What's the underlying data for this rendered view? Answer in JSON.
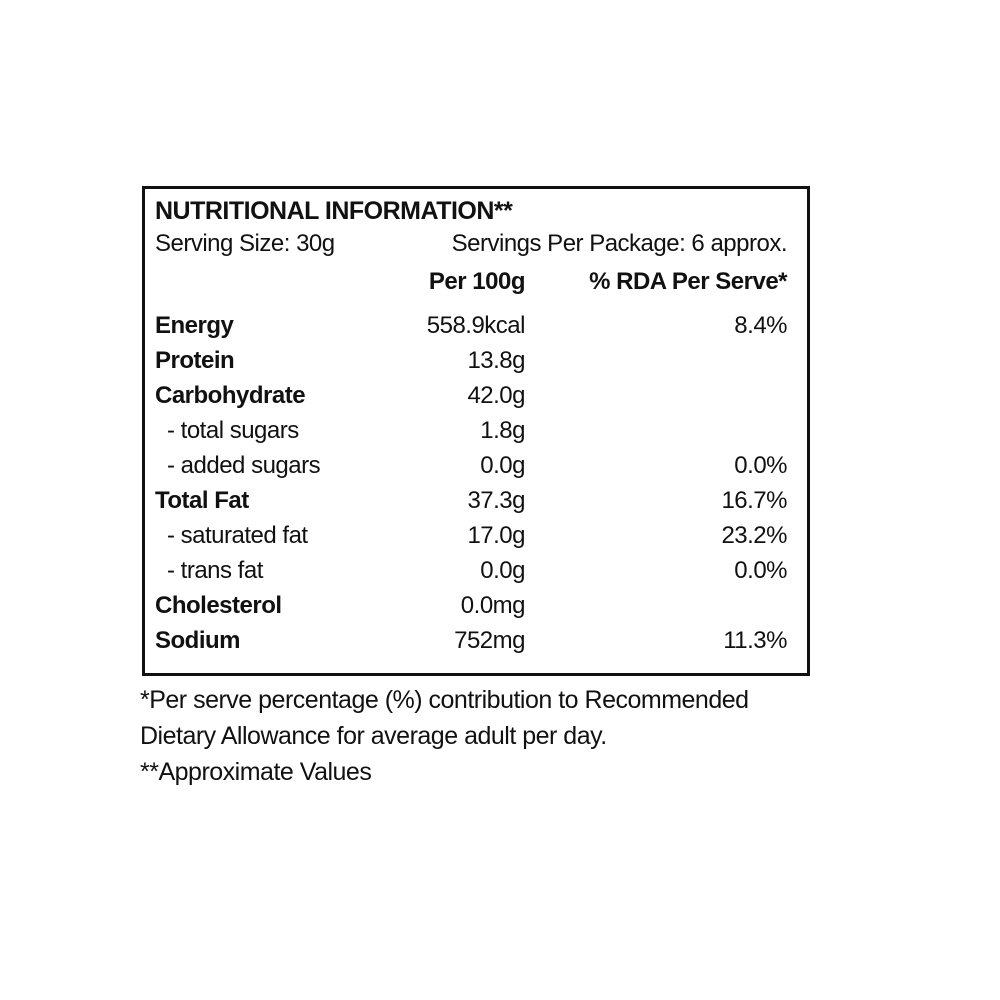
{
  "label": {
    "title": "NUTRITIONAL INFORMATION**",
    "serving_size": "Serving Size: 30g",
    "servings_per_package": "Servings Per Package: 6 approx.",
    "columns": {
      "per_100g": "Per 100g",
      "rda": "% RDA Per Serve*"
    },
    "rows": [
      {
        "name": "Energy",
        "value": "558.9kcal",
        "rda": "8.4%",
        "bold": true
      },
      {
        "name": "Protein",
        "value": "13.8g",
        "rda": "",
        "bold": true
      },
      {
        "name": "Carbohydrate",
        "value": "42.0g",
        "rda": "",
        "bold": true
      },
      {
        "name": "- total sugars",
        "value": "1.8g",
        "rda": "",
        "bold": false
      },
      {
        "name": "- added sugars",
        "value": "0.0g",
        "rda": "0.0%",
        "bold": false
      },
      {
        "name": "Total Fat",
        "value": "37.3g",
        "rda": "16.7%",
        "bold": true
      },
      {
        "name": "- saturated fat",
        "value": "17.0g",
        "rda": "23.2%",
        "bold": false
      },
      {
        "name": "- trans fat",
        "value": "0.0g",
        "rda": "0.0%",
        "bold": false
      },
      {
        "name": "Cholesterol",
        "value": "0.0mg",
        "rda": "",
        "bold": true
      },
      {
        "name": "Sodium",
        "value": "752mg",
        "rda": "11.3%",
        "bold": true
      }
    ]
  },
  "footnotes": {
    "rda_note": "*Per serve percentage (%) contribution to Recommended Dietary Allowance for average adult per day.",
    "approx_note": "**Approximate Values"
  },
  "colors": {
    "text": "#111111",
    "border": "#111111",
    "background": "#ffffff"
  }
}
